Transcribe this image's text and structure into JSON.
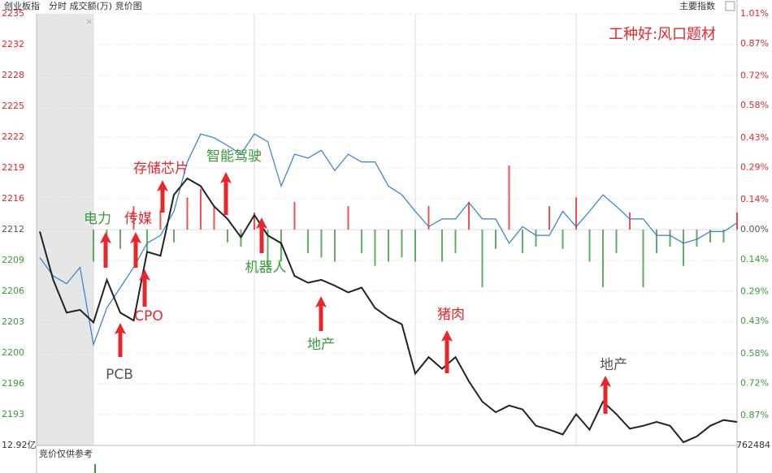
{
  "chart_data": {
    "type": "line",
    "title": "创业板指",
    "subtitle": "分时 成交额(万) 竞价图",
    "tab": "主要指数",
    "bottom_left": "12.92亿",
    "bottom_right": "762484",
    "auction_note": "竞价仅供参考",
    "up_color": "#e8262b",
    "down_color": "#3a9a3a",
    "flat_color": "#555555",
    "grid": true,
    "xlim": [
      -21.2,
      240
    ],
    "xticks": [
      0,
      60,
      120,
      180,
      240
    ],
    "ylim": [
      2190.07,
      2234.73
    ],
    "yticks": [
      {
        "value": 2234.73,
        "label": "2235"
      },
      {
        "value": 2231.54,
        "label": "2232"
      },
      {
        "value": 2228.35,
        "label": "2228"
      },
      {
        "value": 2225.16,
        "label": "2225"
      },
      {
        "value": 2221.97,
        "label": "2222"
      },
      {
        "value": 2218.78,
        "label": "2219"
      },
      {
        "value": 2215.59,
        "label": "2216"
      },
      {
        "value": 2212.4,
        "label": "2212"
      },
      {
        "value": 2209.21,
        "label": "2209"
      },
      {
        "value": 2206.02,
        "label": "2206"
      },
      {
        "value": 2202.83,
        "label": "2203"
      },
      {
        "value": 2199.64,
        "label": "2200"
      },
      {
        "value": 2196.45,
        "label": "2196"
      },
      {
        "value": 2193.26,
        "label": "2193"
      }
    ],
    "y2lim": [
      -1.01,
      1.01
    ],
    "y2ticks": [
      {
        "value": 1.01,
        "label": "1.01%"
      },
      {
        "value": 0.87,
        "label": "0.87%"
      },
      {
        "value": 0.72,
        "label": "0.72%"
      },
      {
        "value": 0.58,
        "label": "0.58%"
      },
      {
        "value": 0.43,
        "label": "0.43%"
      },
      {
        "value": 0.29,
        "label": "0.29%"
      },
      {
        "value": 0.14,
        "label": "0.14%"
      },
      {
        "value": 0,
        "label": "0.00%"
      },
      {
        "value": -0.14,
        "label": "0.14%"
      },
      {
        "value": -0.29,
        "label": "0.29%"
      },
      {
        "value": -0.43,
        "label": "0.43%"
      },
      {
        "value": -0.58,
        "label": "0.58%"
      },
      {
        "value": -0.72,
        "label": "0.72%"
      },
      {
        "value": -0.87,
        "label": "0.87%"
      }
    ],
    "x": [
      -20,
      -15,
      -10,
      -5,
      0,
      5,
      10,
      15,
      20,
      25,
      30,
      35,
      40,
      45,
      50,
      55,
      60,
      65,
      70,
      75,
      80,
      85,
      90,
      95,
      100,
      105,
      110,
      115,
      120,
      125,
      130,
      135,
      140,
      145,
      150,
      155,
      160,
      165,
      170,
      175,
      180,
      185,
      190,
      195,
      200,
      205,
      210,
      215,
      220,
      225,
      230,
      235,
      240
    ],
    "series": [
      {
        "color": "#222222",
        "values": [
          2212.2,
          2207.2,
          2203.8,
          2204.1,
          2202.8,
          2207.2,
          2203.8,
          2203.0,
          2210.1,
          2209.7,
          2216.0,
          2217.7,
          2216.9,
          2214.8,
          2213.5,
          2211.6,
          2213.9,
          2211.8,
          2211.0,
          2207.6,
          2206.9,
          2207.2,
          2206.6,
          2205.9,
          2206.4,
          2204.3,
          2203.3,
          2202.6,
          2197.5,
          2199.2,
          2198.0,
          2199.2,
          2196.7,
          2194.6,
          2193.5,
          2194.2,
          2193.8,
          2192.1,
          2191.7,
          2191.2,
          2193.3,
          2191.7,
          2194.6,
          2193.3,
          2191.8,
          2192.1,
          2192.5,
          2192.1,
          2190.4,
          2191.0,
          2192.1,
          2192.7,
          2192.5
        ]
      },
      {
        "color": "#2f7fd0",
        "values": [
          2209.5,
          2207.6,
          2206.8,
          2208.5,
          2200.5,
          2204.3,
          2206.4,
          2208.5,
          2211.0,
          2211.8,
          2214.3,
          2219.4,
          2222.3,
          2221.9,
          2221.1,
          2220.2,
          2222.3,
          2221.5,
          2216.9,
          2220.2,
          2219.8,
          2220.6,
          2218.5,
          2220.2,
          2219.4,
          2219.4,
          2216.9,
          2216.0,
          2214.3,
          2212.7,
          2213.5,
          2213.5,
          2215.2,
          2213.5,
          2213.5,
          2211.0,
          2212.7,
          2211.8,
          2211.8,
          2214.3,
          2212.7,
          2214.3,
          2216.0,
          2214.8,
          2213.5,
          2213.5,
          2211.8,
          2211.8,
          2211.0,
          2211.4,
          2212.2,
          2212.2,
          2213.1
        ]
      }
    ],
    "bars": {
      "axis": "y2",
      "x": [
        0,
        5,
        10,
        15,
        20,
        25,
        30,
        35,
        40,
        45,
        50,
        55,
        60,
        65,
        70,
        75,
        80,
        85,
        90,
        95,
        100,
        105,
        110,
        115,
        120,
        125,
        130,
        135,
        140,
        145,
        150,
        155,
        160,
        165,
        170,
        175,
        180,
        185,
        190,
        195,
        200,
        205,
        210,
        215,
        220,
        225,
        230,
        235,
        240
      ],
      "values": [
        -0.15,
        -0.08,
        -0.09,
        0.11,
        -0.11,
        0.09,
        -0.06,
        0.15,
        0.19,
        0.11,
        -0.06,
        -0.08,
        0.08,
        -0.17,
        -0.15,
        0.13,
        -0.11,
        -0.13,
        -0.15,
        0.11,
        -0.11,
        -0.17,
        -0.15,
        -0.13,
        -0.15,
        0.11,
        -0.15,
        -0.11,
        0.13,
        -0.27,
        -0.09,
        0.3,
        -0.11,
        -0.08,
        0.11,
        -0.09,
        0.15,
        -0.15,
        -0.27,
        -0.11,
        0.08,
        -0.27,
        -0.11,
        -0.08,
        -0.17,
        -0.08,
        -0.06,
        -0.06,
        0.08
      ]
    },
    "annotations": [
      {
        "text": "工种好:风口题材",
        "color": "#e8262b"
      },
      {
        "text": "电力",
        "color": "#3a9a3a"
      },
      {
        "text": "传媒",
        "color": "#e8262b"
      },
      {
        "text": "存储芯片",
        "color": "#e8262b"
      },
      {
        "text": "智能驾驶",
        "color": "#3a9a3a"
      },
      {
        "text": "机器人",
        "color": "#3a9a3a"
      },
      {
        "text": "地产",
        "color": "#3a9a3a"
      },
      {
        "text": "猪肉",
        "color": "#e8262b"
      },
      {
        "text": "地产",
        "color": "#555555"
      },
      {
        "text": "CPO",
        "color": "#e8262b"
      },
      {
        "text": "PCB",
        "color": "#555555"
      }
    ]
  }
}
